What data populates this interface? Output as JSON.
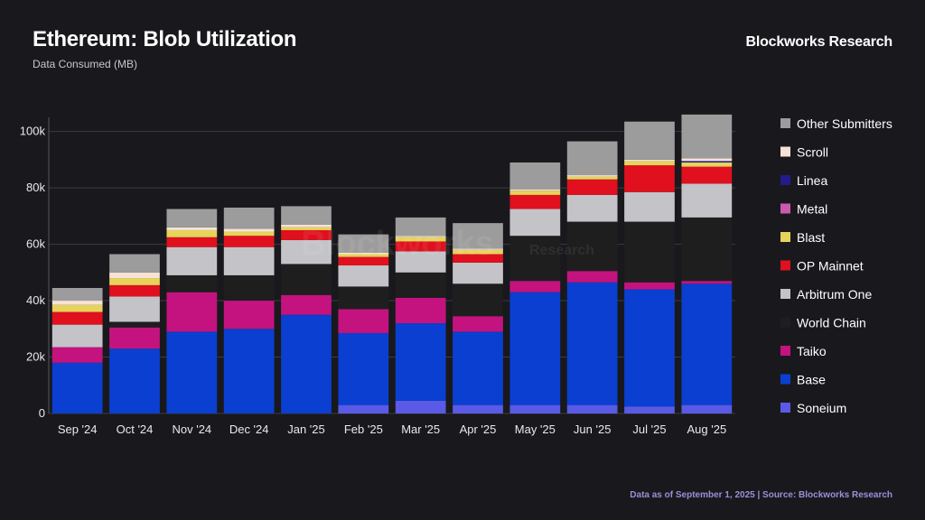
{
  "header": {
    "title": "Ethereum: Blob Utilization",
    "subtitle": "Data Consumed (MB)",
    "brand": "Blockworks Research"
  },
  "footer": {
    "source": "Data as of September 1, 2025 | Source: Blockworks Research"
  },
  "watermark": {
    "main": "Blockworks",
    "sub": "Research"
  },
  "chart_data": {
    "type": "bar",
    "stacked": true,
    "categories": [
      "Sep '24",
      "Oct '24",
      "Nov '24",
      "Dec '24",
      "Jan '25",
      "Feb '25",
      "Mar '25",
      "Apr '25",
      "May '25",
      "Jun '25",
      "Jul '25",
      "Aug '25"
    ],
    "ylim": [
      0,
      105000
    ],
    "yticks": [
      0,
      20000,
      40000,
      60000,
      80000,
      100000
    ],
    "ytick_labels": [
      "0",
      "20k",
      "40k",
      "60k",
      "80k",
      "100k"
    ],
    "grid": true,
    "legend_position": "right",
    "series": [
      {
        "name": "Soneium",
        "color": "#5a5ae6",
        "values": [
          0,
          0,
          0,
          0,
          0,
          3000,
          4500,
          3000,
          3000,
          3000,
          2500,
          3000
        ]
      },
      {
        "name": "Base",
        "color": "#0a3fd1",
        "values": [
          18000,
          23000,
          29000,
          30000,
          35000,
          25500,
          27500,
          26000,
          40000,
          43500,
          41500,
          43000
        ]
      },
      {
        "name": "Taiko",
        "color": "#c4137f",
        "values": [
          5500,
          7500,
          14000,
          10000,
          7000,
          8500,
          9000,
          5500,
          4000,
          4000,
          2500,
          1000
        ]
      },
      {
        "name": "World Chain",
        "color": "#1e1e1e",
        "values": [
          0,
          2000,
          6000,
          9000,
          11000,
          8000,
          9000,
          11500,
          16000,
          17500,
          21500,
          22500
        ]
      },
      {
        "name": "Arbitrum One",
        "color": "#c3c3c8",
        "values": [
          8000,
          9000,
          10000,
          10000,
          8500,
          7500,
          7500,
          7500,
          9500,
          9500,
          10500,
          12000
        ]
      },
      {
        "name": "OP Mainnet",
        "color": "#e0101e",
        "values": [
          4500,
          4000,
          3500,
          4000,
          3500,
          3000,
          3500,
          3000,
          5000,
          5500,
          9500,
          6000
        ]
      },
      {
        "name": "Blast",
        "color": "#e6d35a",
        "values": [
          2500,
          2500,
          2500,
          1500,
          1000,
          1000,
          1500,
          1500,
          1500,
          1000,
          1500,
          1500
        ]
      },
      {
        "name": "Metal",
        "color": "#c85ab0",
        "values": [
          0,
          0,
          0,
          0,
          0,
          0,
          0,
          0,
          0,
          0,
          0,
          0
        ]
      },
      {
        "name": "Linea",
        "color": "#251a8a",
        "values": [
          0,
          0,
          0,
          0,
          0,
          0,
          0,
          0,
          0,
          0,
          0,
          500
        ]
      },
      {
        "name": "Scroll",
        "color": "#f6e3d6",
        "values": [
          1500,
          2000,
          1000,
          1000,
          1000,
          500,
          500,
          500,
          500,
          500,
          500,
          1000
        ]
      },
      {
        "name": "Other Submitters",
        "color": "#9c9c9c",
        "values": [
          4500,
          6500,
          6500,
          7500,
          6500,
          6500,
          6500,
          9000,
          9500,
          12000,
          13500,
          15500
        ]
      }
    ],
    "legend_order": [
      "Other Submitters",
      "Scroll",
      "Linea",
      "Metal",
      "Blast",
      "OP Mainnet",
      "Arbitrum One",
      "World Chain",
      "Taiko",
      "Base",
      "Soneium"
    ]
  }
}
